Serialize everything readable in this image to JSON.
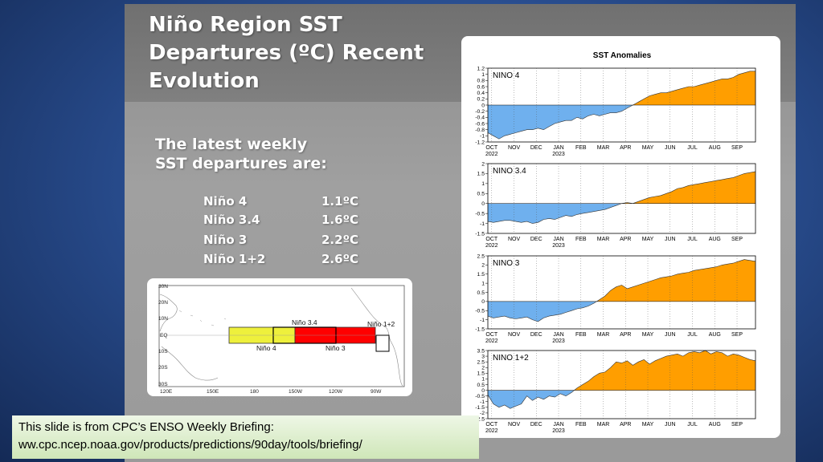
{
  "slide": {
    "title_lines": [
      "Niño Region SST",
      "Departures (ºC) Recent",
      "Evolution"
    ],
    "subtitle_lines": [
      "The latest weekly",
      "SST departures are:"
    ],
    "values": [
      {
        "region": "Niño 4",
        "value": "1.1ºC"
      },
      {
        "region": "Niño 3.4",
        "value": "1.6ºC"
      },
      {
        "region": "Niño 3",
        "value": "2.2ºC"
      },
      {
        "region": "Niño 1+2",
        "value": "2.6ºC"
      }
    ],
    "footer_lines": [
      "This slide is from CPC’s ENSO Weekly Briefing:",
      "ww.cpc.ncep.noaa.gov/products/predictions/90day/tools/briefing/"
    ]
  },
  "map": {
    "lat_labels": [
      "30N",
      "20N",
      "10N",
      "EQ",
      "10S",
      "20S",
      "30S"
    ],
    "lon_labels": [
      "120E",
      "150E",
      "180",
      "150W",
      "120W",
      "90W"
    ],
    "region_labels": {
      "nino4": "Niño 4",
      "nino34": "Niño 3.4",
      "nino3": "Niño 3",
      "nino12": "Niño 1+2"
    },
    "colors": {
      "nino4": "#eef03c",
      "nino3": "#ff0000",
      "nino12": "#ffffff"
    }
  },
  "chart_data": {
    "type": "area",
    "title": "SST Anomalies",
    "positive_color": "#ff9e00",
    "negative_color": "#6fb0ee",
    "x_labels": [
      "OCT",
      "NOV",
      "DEC",
      "JAN",
      "FEB",
      "MAR",
      "APR",
      "MAY",
      "JUN",
      "JUL",
      "AUG",
      "SEP"
    ],
    "x_year_labels": [
      {
        "label": "2022",
        "under": "OCT"
      },
      {
        "label": "2023",
        "under": "JAN"
      }
    ],
    "panels": [
      {
        "name": "NINO 4",
        "ylim": [
          -1.2,
          1.2
        ],
        "yticks": [
          "1.2",
          "1",
          "0.8",
          "0.6",
          "0.4",
          "0.2",
          "0",
          "-0.2",
          "-0.4",
          "-0.6",
          "-0.8",
          "-1",
          "-1.2"
        ],
        "ytick_values": [
          1.2,
          1,
          0.8,
          0.6,
          0.4,
          0.2,
          0,
          -0.2,
          -0.4,
          -0.6,
          -0.8,
          -1,
          -1.2
        ],
        "values": [
          -0.9,
          -1.0,
          -1.1,
          -1.0,
          -0.95,
          -0.9,
          -0.85,
          -0.8,
          -0.8,
          -0.75,
          -0.8,
          -0.7,
          -0.6,
          -0.55,
          -0.5,
          -0.5,
          -0.4,
          -0.45,
          -0.35,
          -0.3,
          -0.35,
          -0.3,
          -0.25,
          -0.25,
          -0.2,
          -0.1,
          0,
          0.1,
          0.2,
          0.3,
          0.35,
          0.4,
          0.4,
          0.45,
          0.5,
          0.55,
          0.6,
          0.6,
          0.65,
          0.7,
          0.75,
          0.8,
          0.85,
          0.85,
          0.9,
          1.0,
          1.05,
          1.1,
          1.1
        ]
      },
      {
        "name": "NINO 3.4",
        "ylim": [
          -1.5,
          2
        ],
        "yticks": [
          "2",
          "1.5",
          "1",
          "0.5",
          "0",
          "-0.5",
          "-1",
          "-1.5"
        ],
        "ytick_values": [
          2,
          1.5,
          1,
          0.5,
          0,
          -0.5,
          -1,
          -1.5
        ],
        "values": [
          -0.9,
          -0.95,
          -0.9,
          -0.85,
          -0.85,
          -0.9,
          -0.95,
          -0.9,
          -1.0,
          -0.95,
          -0.8,
          -0.75,
          -0.8,
          -0.7,
          -0.6,
          -0.65,
          -0.55,
          -0.5,
          -0.45,
          -0.4,
          -0.35,
          -0.3,
          -0.2,
          -0.1,
          0,
          0.05,
          0,
          0.1,
          0.2,
          0.3,
          0.35,
          0.4,
          0.5,
          0.6,
          0.75,
          0.8,
          0.9,
          0.95,
          1.0,
          1.05,
          1.1,
          1.15,
          1.2,
          1.25,
          1.3,
          1.4,
          1.5,
          1.55,
          1.6
        ]
      },
      {
        "name": "NINO 3",
        "ylim": [
          -1.5,
          2.5
        ],
        "yticks": [
          "2.5",
          "2",
          "1.5",
          "1",
          "0.5",
          "0",
          "-0.5",
          "-1",
          "-1.5"
        ],
        "ytick_values": [
          2.5,
          2,
          1.5,
          1,
          0.5,
          0,
          -0.5,
          -1,
          -1.5
        ],
        "values": [
          -0.8,
          -0.9,
          -0.85,
          -0.8,
          -0.9,
          -0.95,
          -0.9,
          -0.85,
          -1.0,
          -1.1,
          -0.9,
          -0.8,
          -0.75,
          -0.7,
          -0.6,
          -0.5,
          -0.4,
          -0.35,
          -0.25,
          -0.1,
          0.1,
          0.3,
          0.6,
          0.8,
          0.9,
          0.7,
          0.8,
          0.9,
          1.0,
          1.1,
          1.2,
          1.3,
          1.35,
          1.4,
          1.5,
          1.55,
          1.6,
          1.7,
          1.75,
          1.8,
          1.85,
          1.9,
          2.0,
          2.05,
          2.1,
          2.2,
          2.3,
          2.25,
          2.2
        ]
      },
      {
        "name": "NINO 1+2",
        "ylim": [
          -2.5,
          3.5
        ],
        "yticks": [
          "3.5",
          "3",
          "2.5",
          "2",
          "1.5",
          "1",
          "0.5",
          "0",
          "-0.5",
          "-1",
          "-1.5",
          "-2",
          "-2.5"
        ],
        "ytick_values": [
          3.5,
          3,
          2.5,
          2,
          1.5,
          1,
          0.5,
          0,
          -0.5,
          -1,
          -1.5,
          -2,
          -2.5
        ],
        "values": [
          -0.4,
          -1.2,
          -1.5,
          -1.3,
          -1.6,
          -1.4,
          -1.2,
          -0.5,
          -0.9,
          -0.6,
          -0.8,
          -0.5,
          -0.6,
          -0.3,
          -0.5,
          -0.2,
          0.2,
          0.5,
          0.8,
          1.2,
          1.5,
          1.6,
          2.0,
          2.5,
          2.4,
          2.6,
          2.2,
          2.5,
          2.7,
          2.3,
          2.6,
          2.8,
          3.0,
          3.1,
          3.2,
          3.0,
          3.3,
          3.4,
          3.3,
          3.5,
          3.2,
          3.4,
          3.3,
          3.0,
          3.2,
          3.1,
          2.9,
          2.7,
          2.6
        ]
      }
    ]
  }
}
